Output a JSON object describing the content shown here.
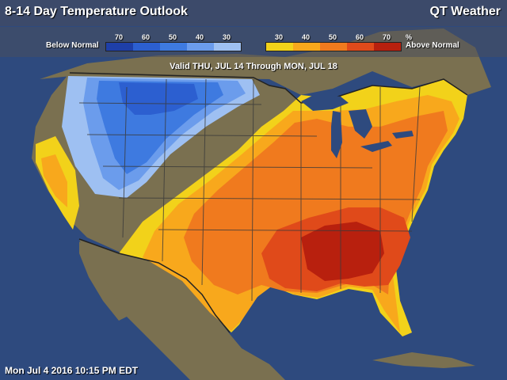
{
  "title": "8-14 Day Temperature Outlook",
  "brand": "QT Weather",
  "valid_text": "Valid THU, JUL 14 Through MON, JUL 18",
  "timestamp": "Mon Jul 4 2016 10:15 PM EDT",
  "legend": {
    "below_label": "Below Normal",
    "above_label": "Above Normal",
    "below_numbers": [
      "70",
      "60",
      "50",
      "40",
      "30"
    ],
    "above_numbers": [
      "30",
      "40",
      "50",
      "60",
      "70"
    ],
    "percent_sign": "%",
    "below_colors": [
      "#1e3fa8",
      "#2c5fd0",
      "#3e7ae0",
      "#6b9cec",
      "#9ec0f2"
    ],
    "above_colors": [
      "#f2d21a",
      "#f8a81c",
      "#f07a1e",
      "#e04a1a",
      "#b8200e"
    ]
  },
  "colors": {
    "ocean": "#2e4a7e",
    "land": "#7a7050",
    "mexico": "#7a7050",
    "borders": "#3a3a3a"
  }
}
